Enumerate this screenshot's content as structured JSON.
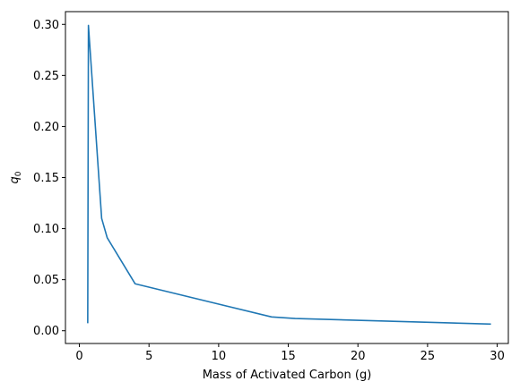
{
  "chart_data": {
    "type": "line",
    "title": "",
    "xlabel": "Mass of Activated Carbon (g)",
    "ylabel": "q",
    "ylabel_subscript": "0",
    "xlim": [
      -1.0,
      30.8
    ],
    "ylim": [
      -0.0125,
      0.3125
    ],
    "xticks": [
      0,
      5,
      10,
      15,
      20,
      25,
      30
    ],
    "yticks": [
      0.0,
      0.05,
      0.1,
      0.15,
      0.2,
      0.25,
      0.3
    ],
    "xtick_labels": [
      "0",
      "5",
      "10",
      "15",
      "20",
      "25",
      "30"
    ],
    "ytick_labels": [
      "0.00",
      "0.05",
      "0.10",
      "0.15",
      "0.20",
      "0.25",
      "0.30"
    ],
    "grid": false,
    "colors": {
      "series": "#1f77b4",
      "axes": "#000000",
      "background": "#ffffff"
    },
    "series": [
      {
        "x": [
          0.6,
          0.65,
          1.6,
          2.0,
          4.0,
          13.8,
          15.5,
          29.5
        ],
        "values": [
          0.008,
          0.299,
          0.11,
          0.091,
          0.046,
          0.0135,
          0.012,
          0.0065
        ]
      }
    ]
  }
}
